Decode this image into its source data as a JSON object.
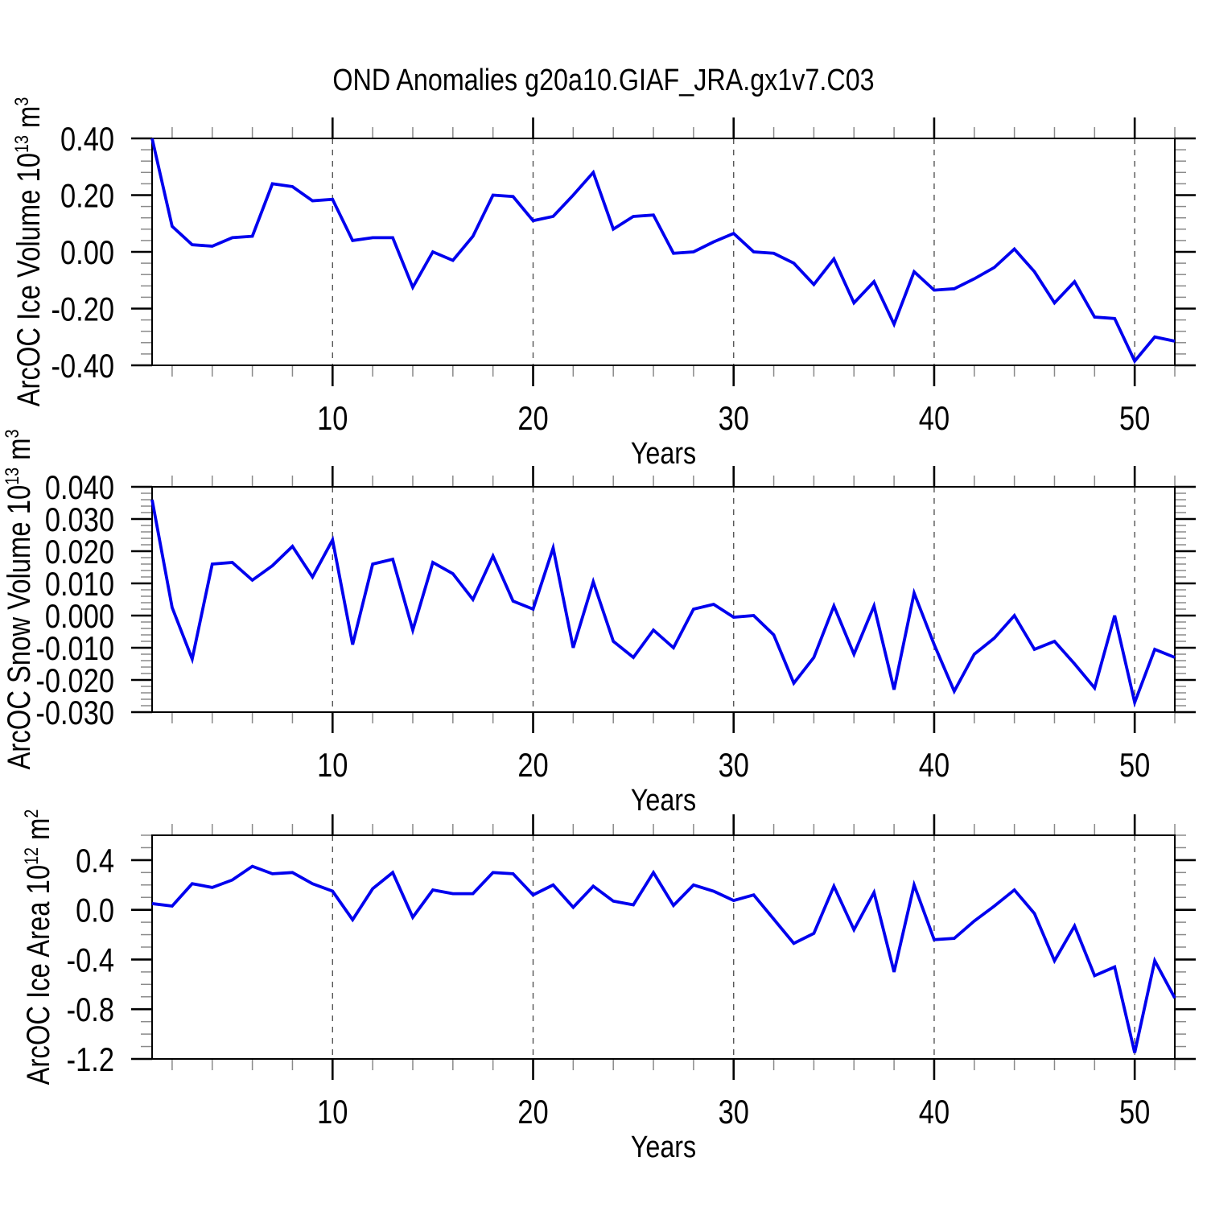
{
  "title": "OND Anomalies g20a10.GIAF_JRA.gx1v7.C03",
  "style": {
    "line_color": "#0000EE",
    "axis_color": "#000000",
    "major_tick_color": "#000000",
    "minor_tick_color": "#8a8a8a",
    "grid_color": "#555555",
    "background": "#FFFFFF"
  },
  "chart_data": [
    {
      "type": "line",
      "panel": "arcoc-ice-volume",
      "ylabel": {
        "base": "ArcOC Ice Volume 10",
        "sup1": "13",
        "mid": " m",
        "sup2": "3"
      },
      "ylim": [
        -0.4,
        0.4
      ],
      "ytick_values": [
        0.4,
        0.2,
        0.0,
        -0.2,
        -0.4
      ],
      "ytick_labels": [
        "0.40",
        "0.20",
        "0.00",
        "-0.20",
        "-0.40"
      ],
      "y_minor_step": 0.04,
      "x": {
        "start": 1,
        "end": 52,
        "step": 1
      },
      "xtick_major": [
        10,
        20,
        30,
        40,
        50
      ],
      "xtick_labels": [
        "10",
        "20",
        "30",
        "40",
        "50"
      ],
      "x_minor_step": 2,
      "xlabel": "Years",
      "grid": "vertical-dashed",
      "legend": "none",
      "values": [
        0.4,
        0.09,
        0.025,
        0.02,
        0.05,
        0.055,
        0.24,
        0.23,
        0.18,
        0.185,
        0.04,
        0.05,
        0.05,
        -0.125,
        0.0,
        -0.03,
        0.055,
        0.2,
        0.195,
        0.11,
        0.125,
        0.2,
        0.28,
        0.08,
        0.125,
        0.13,
        -0.005,
        0.0,
        0.035,
        0.065,
        0.0,
        -0.005,
        -0.04,
        -0.115,
        -0.025,
        -0.18,
        -0.105,
        -0.255,
        -0.07,
        -0.135,
        -0.13,
        -0.095,
        -0.055,
        0.01,
        -0.07,
        -0.18,
        -0.105,
        -0.23,
        -0.235,
        -0.385,
        -0.3,
        -0.315
      ]
    },
    {
      "type": "line",
      "panel": "arcoc-snow-volume",
      "ylabel": {
        "base": "ArcOC Snow Volume 10",
        "sup1": "13",
        "mid": " m",
        "sup2": "3"
      },
      "ylim": [
        -0.03,
        0.04
      ],
      "ytick_values": [
        0.04,
        0.03,
        0.02,
        0.01,
        0.0,
        -0.01,
        -0.02,
        -0.03
      ],
      "ytick_labels": [
        "0.040",
        "0.030",
        "0.020",
        "0.010",
        "0.000",
        "-0.010",
        "-0.020",
        "-0.030"
      ],
      "y_minor_step": 0.002,
      "x": {
        "start": 1,
        "end": 52,
        "step": 1
      },
      "xtick_major": [
        10,
        20,
        30,
        40,
        50
      ],
      "xtick_labels": [
        "10",
        "20",
        "30",
        "40",
        "50"
      ],
      "x_minor_step": 2,
      "xlabel": "Years",
      "grid": "vertical-dashed",
      "legend": "none",
      "values": [
        0.036,
        0.0025,
        -0.0135,
        0.016,
        0.0165,
        0.011,
        0.0155,
        0.0215,
        0.012,
        0.0235,
        -0.009,
        0.016,
        0.0175,
        -0.0045,
        0.0165,
        0.013,
        0.005,
        0.0185,
        0.0045,
        0.002,
        0.021,
        -0.01,
        0.0105,
        -0.008,
        -0.013,
        -0.0045,
        -0.01,
        0.002,
        0.0035,
        -0.0005,
        0.0,
        -0.006,
        -0.021,
        -0.013,
        0.003,
        -0.012,
        0.003,
        -0.023,
        0.007,
        -0.009,
        -0.0235,
        -0.012,
        -0.007,
        0.0,
        -0.0105,
        -0.008,
        -0.015,
        -0.0225,
        0.0,
        -0.027,
        -0.0105,
        -0.013
      ]
    },
    {
      "type": "line",
      "panel": "arcoc-ice-area",
      "ylabel": {
        "base": "ArcOC Ice Area 10",
        "sup1": "12",
        "mid": " m",
        "sup2": "2"
      },
      "ylim": [
        -1.2,
        0.6
      ],
      "ytick_values": [
        0.4,
        0.0,
        -0.4,
        -0.8,
        -1.2
      ],
      "ytick_labels": [
        "0.4",
        "0.0",
        "-0.4",
        "-0.8",
        "-1.2"
      ],
      "y_minor_step": 0.1,
      "x": {
        "start": 1,
        "end": 52,
        "step": 1
      },
      "xtick_major": [
        10,
        20,
        30,
        40,
        50
      ],
      "xtick_labels": [
        "10",
        "20",
        "30",
        "40",
        "50"
      ],
      "x_minor_step": 2,
      "xlabel": "Years",
      "grid": "vertical-dashed",
      "legend": "none",
      "values": [
        0.05,
        0.03,
        0.21,
        0.18,
        0.24,
        0.35,
        0.29,
        0.3,
        0.21,
        0.15,
        -0.08,
        0.17,
        0.3,
        -0.06,
        0.16,
        0.13,
        0.13,
        0.3,
        0.29,
        0.12,
        0.2,
        0.02,
        0.19,
        0.07,
        0.04,
        0.3,
        0.035,
        0.2,
        0.15,
        0.075,
        0.12,
        -0.075,
        -0.27,
        -0.19,
        0.19,
        -0.16,
        0.14,
        -0.5,
        0.2,
        -0.24,
        -0.23,
        -0.09,
        0.03,
        0.16,
        -0.03,
        -0.41,
        -0.13,
        -0.53,
        -0.46,
        -1.15,
        -0.41,
        -0.71
      ]
    }
  ]
}
